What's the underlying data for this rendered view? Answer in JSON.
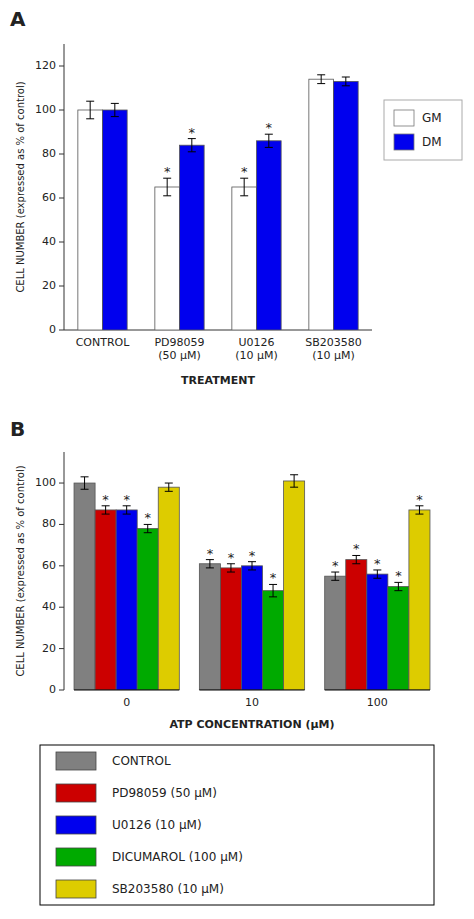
{
  "chart_data": [
    {
      "type": "bar",
      "title": "A",
      "categories": [
        "CONTROL",
        "PD98059\n(50 μM)",
        "U0126\n(10 μM)",
        "SB203580\n(10 μM)"
      ],
      "series": [
        {
          "name": "GM",
          "color": "#ffffff",
          "values": [
            100,
            65,
            65,
            114
          ],
          "errors": [
            4,
            4,
            4,
            2
          ],
          "significant": [
            false,
            true,
            true,
            false
          ]
        },
        {
          "name": "DM",
          "color": "#0000ee",
          "values": [
            100,
            84,
            86,
            113
          ],
          "errors": [
            3,
            3,
            3,
            2
          ],
          "significant": [
            false,
            true,
            true,
            false
          ]
        }
      ],
      "significance_mark": "*",
      "x_label": "TREATMENT",
      "y_label": "CELL NUMBER (expressed as % of control)",
      "ylim": [
        0,
        130
      ],
      "yticks": [
        0,
        20,
        40,
        60,
        80,
        100,
        120
      ],
      "grid": false,
      "legend": "right"
    },
    {
      "type": "bar",
      "title": "B",
      "categories": [
        "0",
        "10",
        "100"
      ],
      "series": [
        {
          "name": "CONTROL",
          "color": "#808080",
          "values": [
            100,
            61,
            55
          ],
          "errors": [
            3,
            2,
            2
          ],
          "significant": [
            false,
            true,
            true
          ]
        },
        {
          "name": "PD98059 (50 μM)",
          "color": "#cc0000",
          "values": [
            87,
            59,
            63
          ],
          "errors": [
            2,
            2,
            2
          ],
          "significant": [
            true,
            true,
            true
          ]
        },
        {
          "name": "U0126 (10 μM)",
          "color": "#0000ee",
          "values": [
            87,
            60,
            56
          ],
          "errors": [
            2,
            2,
            2
          ],
          "significant": [
            true,
            true,
            true
          ]
        },
        {
          "name": "DICUMAROL (100 μM)",
          "color": "#00aa00",
          "values": [
            78,
            48,
            50
          ],
          "errors": [
            2,
            3,
            2
          ],
          "significant": [
            true,
            true,
            true
          ]
        },
        {
          "name": "SB203580 (10 μM)",
          "color": "#ddcc00",
          "values": [
            98,
            101,
            87
          ],
          "errors": [
            2,
            3,
            2
          ],
          "significant": [
            false,
            false,
            true
          ]
        }
      ],
      "significance_mark": "*",
      "x_label": "ATP CONCENTRATION (μM)",
      "y_label": "CELL NUMBER (expressed as % of control)",
      "ylim": [
        0,
        115
      ],
      "yticks": [
        0,
        20,
        40,
        60,
        80,
        100
      ],
      "grid": false,
      "legend": "bottom"
    }
  ]
}
